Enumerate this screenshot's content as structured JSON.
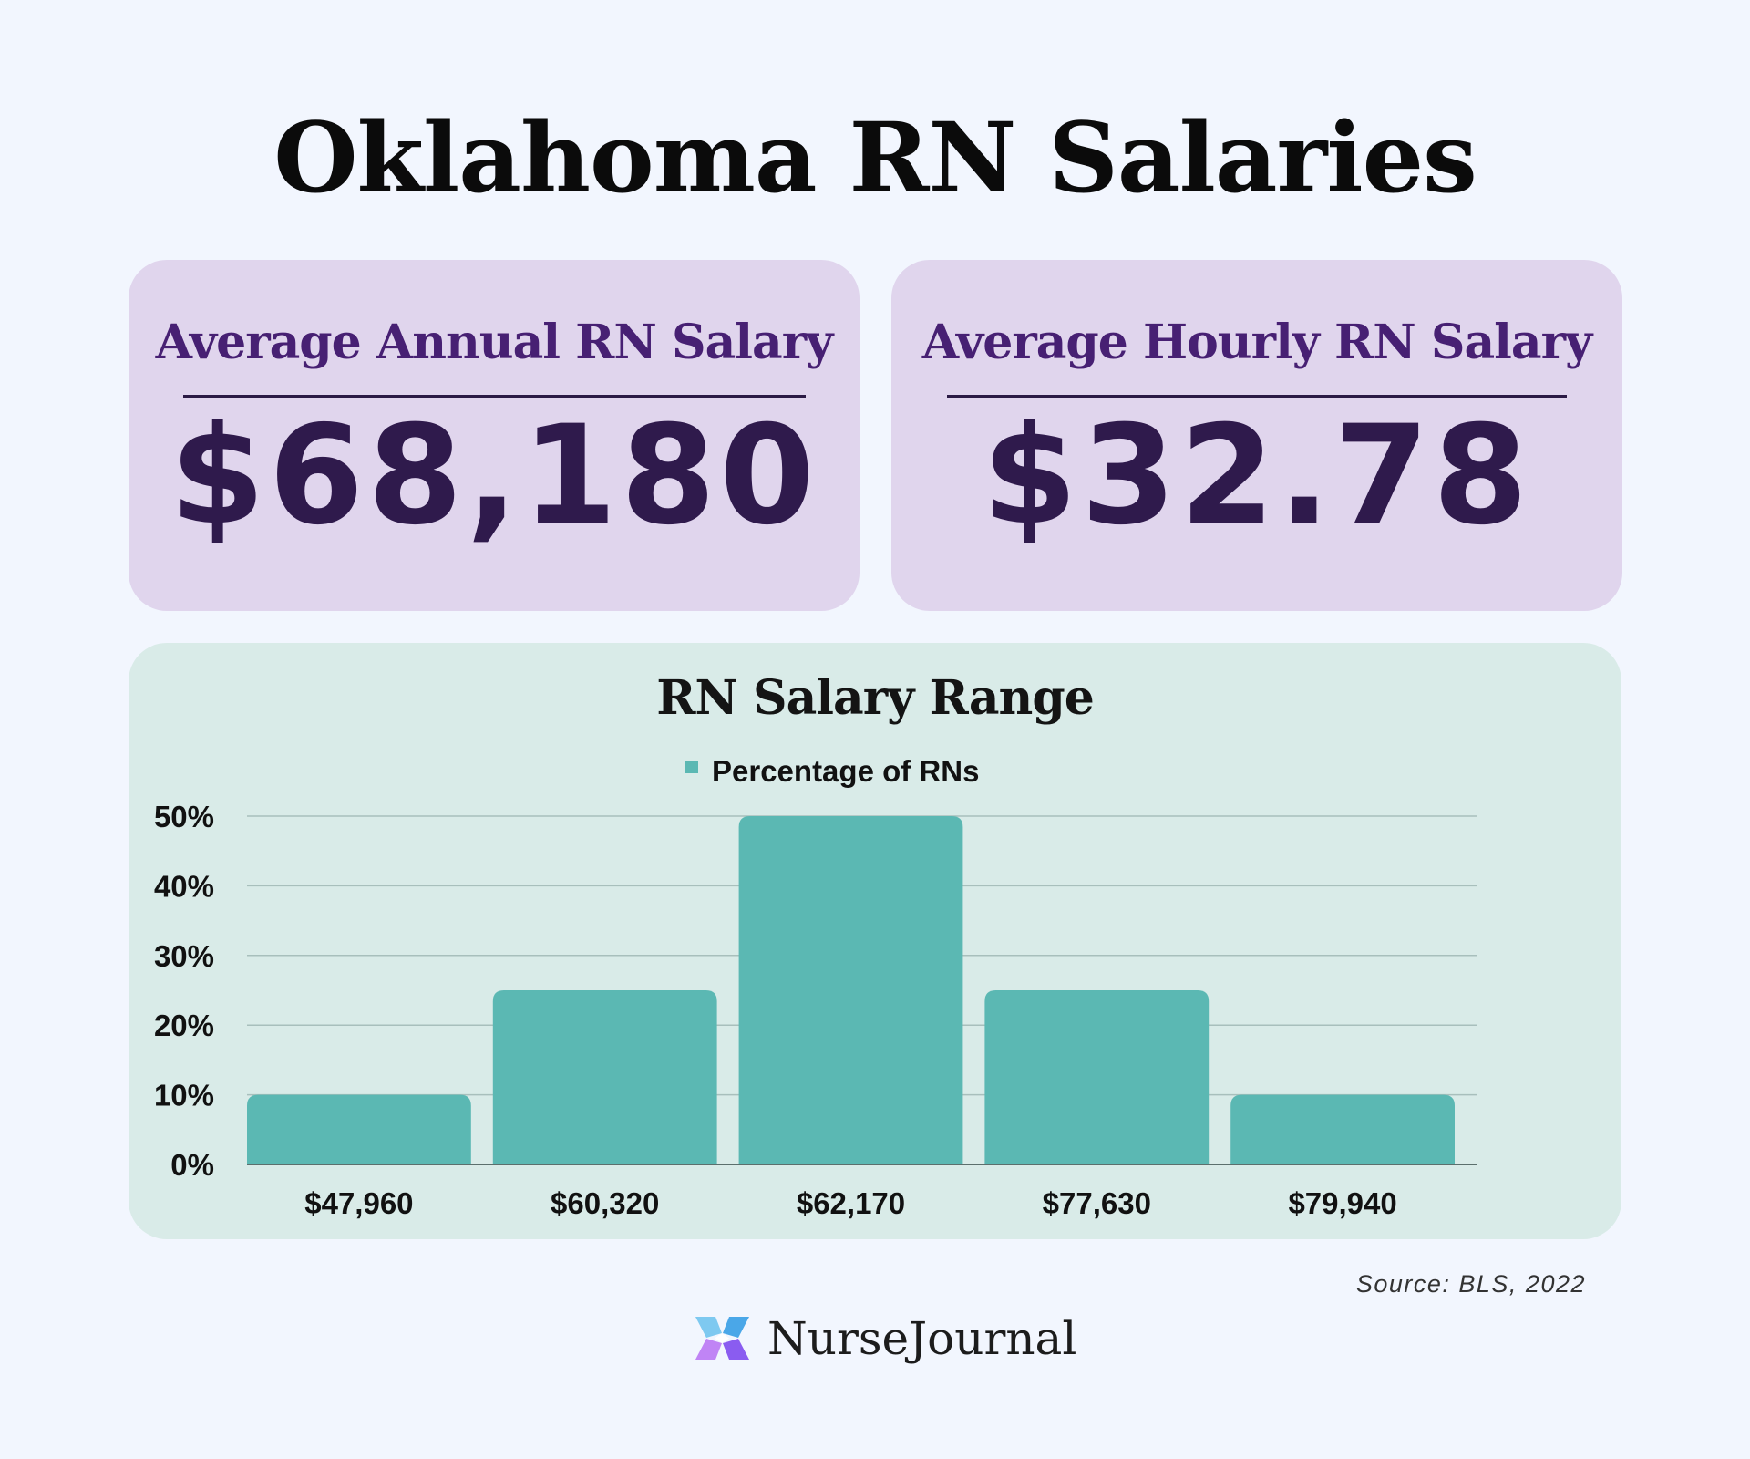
{
  "title": "Oklahoma RN Salaries",
  "cards": {
    "annual": {
      "label": "Average Annual RN Salary",
      "value": "$68,180"
    },
    "hourly": {
      "label": "Average Hourly RN Salary",
      "value": "$32.78"
    }
  },
  "source": "Source: BLS, 2022",
  "brand": {
    "name": "NurseJournal"
  },
  "colors": {
    "background": "#f2f6fe",
    "card_purple": "#e0d5ed",
    "card_text_purple": "#472073",
    "value_purple": "#2f1a4c",
    "chart_card": "#d9ebe8",
    "bar": "#5bb8b3"
  },
  "chart_data": {
    "type": "bar",
    "title": "RN Salary Range",
    "legend_position": "top-center",
    "grid": true,
    "categories": [
      "$47,960",
      "$60,320",
      "$62,170",
      "$77,630",
      "$79,940"
    ],
    "series": [
      {
        "name": "Percentage of RNs",
        "values": [
          10,
          25,
          50,
          25,
          10
        ],
        "color": "#5bb8b3"
      }
    ],
    "ylim": [
      0,
      50
    ],
    "yticks": [
      0,
      10,
      20,
      30,
      40,
      50
    ],
    "ytick_labels": [
      "0%",
      "10%",
      "20%",
      "30%",
      "40%",
      "50%"
    ],
    "xlabel": "",
    "ylabel": ""
  }
}
